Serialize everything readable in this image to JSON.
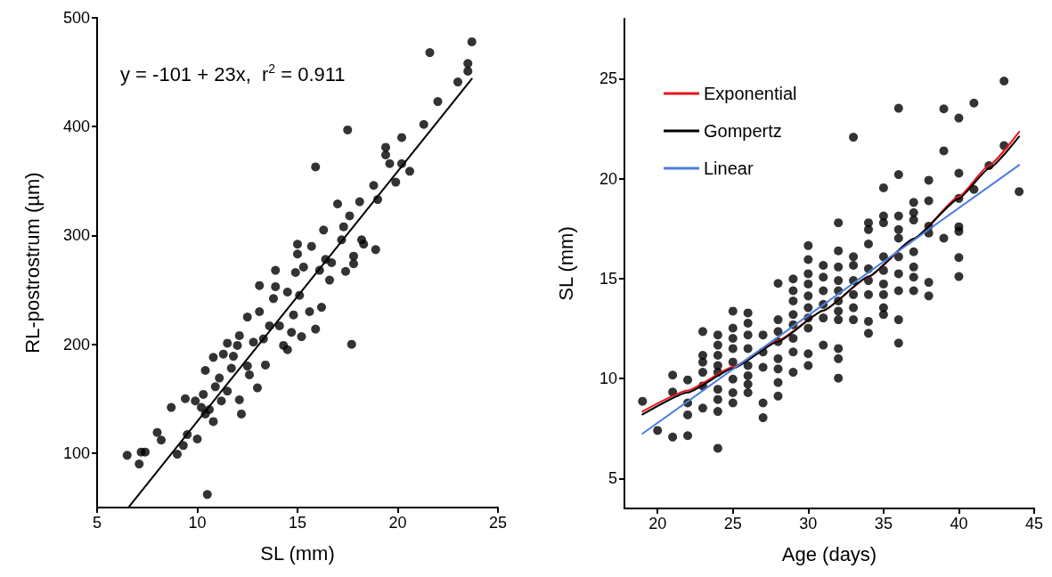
{
  "chart_data": [
    {
      "type": "scatter",
      "xlabel": "SL (mm)",
      "ylabel": "RL-postrostrum (µm)",
      "xlim": [
        5,
        25
      ],
      "xticks": [
        5,
        10,
        15,
        20,
        25
      ],
      "ylim": [
        50,
        500
      ],
      "yticks": [
        100,
        200,
        300,
        400,
        500
      ],
      "marker": "circle",
      "annotations": [
        "y = -101 + 23x,  r$^{2}$ = 0.911"
      ],
      "series": [
        {
          "color": "#000000",
          "x": [
            6.5,
            7.1,
            7.2,
            7.4,
            8.0,
            8.2,
            8.7,
            9.0,
            9.3,
            9.4,
            9.5,
            9.9,
            10.0,
            10.3,
            10.5,
            10.4,
            10.8,
            10.9,
            10.8,
            10.4,
            11.3,
            11.5,
            11.2,
            11.5,
            11.8,
            12.1,
            12.1,
            12.2,
            12.5,
            12.6,
            12.5,
            13.0,
            13.1,
            13.1,
            13.3,
            13.4,
            13.6,
            13.8,
            13.9,
            13.9,
            14.1,
            14.3,
            14.5,
            14.5,
            14.7,
            14.8,
            14.9,
            15.0,
            15.0,
            15.2,
            15.1,
            15.3,
            15.6,
            15.7,
            15.9,
            15.9,
            16.1,
            16.2,
            16.3,
            16.4,
            16.6,
            16.7,
            17.0,
            17.2,
            17.3,
            17.4,
            17.5,
            17.6,
            17.7,
            17.8,
            17.8,
            18.1,
            18.2,
            18.3,
            18.8,
            18.9,
            19.0,
            19.4,
            19.4,
            19.6,
            19.9,
            20.2,
            20.2,
            20.6,
            21.3,
            21.6,
            22.0,
            23.0,
            23.5,
            23.5,
            23.7,
            10.2,
            10.6,
            11.1,
            11.7,
            12.0,
            12.8
          ],
          "values": [
            98,
            90,
            101,
            101,
            119,
            112,
            142,
            99,
            107,
            150,
            117,
            148,
            113,
            154,
            62,
            136,
            129,
            161,
            188,
            176,
            191,
            201,
            148,
            157,
            189,
            149,
            208,
            136,
            180,
            172,
            225,
            160,
            254,
            230,
            205,
            181,
            217,
            242,
            253,
            268,
            217,
            199,
            195,
            248,
            211,
            227,
            266,
            283,
            292,
            207,
            245,
            271,
            230,
            290,
            214,
            363,
            268,
            234,
            305,
            278,
            259,
            275,
            329,
            296,
            308,
            267,
            397,
            318,
            200,
            281,
            274,
            331,
            296,
            292,
            346,
            287,
            333,
            374,
            381,
            366,
            349,
            390,
            366,
            359,
            402,
            468,
            423,
            441,
            458,
            451,
            478,
            142,
            140,
            169,
            178,
            199,
            202
          ]
        },
        {
          "type": "line",
          "marker": "none",
          "color": "#000000",
          "x": [
            6.6,
            23.7
          ],
          "values": [
            51,
            444
          ]
        }
      ]
    },
    {
      "type": "scatter",
      "xlabel": "Age (days)",
      "ylabel": "SL (mm)",
      "xlim": [
        17.8,
        45
      ],
      "xticks": [
        20,
        25,
        30,
        35,
        40,
        45
      ],
      "ylim": [
        3.5,
        28
      ],
      "yticks": [
        5,
        10,
        15,
        20,
        25
      ],
      "marker": "circle",
      "legend": "top left",
      "series": [
        {
          "color": "#000000",
          "x": [
            19,
            20,
            21,
            21,
            21,
            22,
            22,
            22,
            22,
            23,
            23,
            23,
            23,
            23,
            23,
            24,
            24,
            24,
            24,
            24,
            24,
            24,
            24,
            24,
            25,
            25,
            25,
            25,
            25,
            25,
            25,
            25,
            26,
            26,
            26,
            26,
            26,
            26,
            26,
            26,
            27,
            27,
            27,
            27,
            27,
            28,
            28,
            28,
            28,
            28,
            28,
            28,
            28,
            29,
            29,
            29,
            29,
            29,
            29,
            29,
            29,
            30,
            30,
            30,
            30,
            30,
            30,
            30,
            30,
            30,
            30,
            31,
            31,
            31,
            31,
            31,
            31,
            32,
            32,
            32,
            32,
            32,
            32,
            32,
            32,
            32,
            32,
            32,
            33,
            33,
            33,
            33,
            33,
            33,
            33,
            34,
            34,
            34,
            34,
            34,
            34,
            34,
            34,
            35,
            35,
            35,
            35,
            35,
            35,
            35,
            35,
            35,
            36,
            36,
            36,
            36,
            36,
            36,
            36,
            36,
            36,
            36,
            37,
            37,
            37,
            37,
            37,
            37,
            37,
            38,
            38,
            38,
            38,
            38,
            38,
            39,
            39,
            39,
            40,
            40,
            40,
            40,
            40,
            40,
            40,
            41,
            41,
            42,
            43,
            43,
            44
          ],
          "values": [
            8.86,
            7.4,
            10.17,
            9.32,
            7.07,
            9.93,
            8.78,
            8.18,
            7.14,
            12.35,
            11.16,
            10.82,
            10.31,
            9.63,
            8.52,
            12.18,
            11.67,
            11.16,
            10.65,
            10.31,
            9.46,
            8.95,
            8.35,
            6.51,
            13.37,
            12.52,
            12.01,
            11.5,
            10.82,
            9.97,
            9.29,
            8.78,
            13.28,
            12.77,
            12.18,
            11.5,
            10.65,
            10.14,
            9.71,
            9.29,
            12.18,
            11.33,
            10.56,
            8.78,
            8.04,
            14.76,
            12.94,
            12.35,
            11.84,
            10.99,
            10.48,
            9.8,
            9.12,
            14.98,
            14.39,
            13.88,
            13.2,
            12.69,
            12.01,
            11.33,
            10.31,
            16.65,
            15.95,
            15.24,
            14.73,
            14.13,
            13.54,
            13.03,
            12.52,
            11.24,
            10.65,
            15.66,
            15.07,
            14.39,
            13.71,
            13.03,
            11.67,
            17.79,
            16.39,
            15.58,
            14.9,
            14.39,
            13.88,
            13.37,
            12.94,
            11.5,
            10.99,
            10.02,
            22.07,
            16.09,
            15.66,
            14.9,
            14.2,
            13.54,
            12.94,
            17.79,
            17.45,
            16.73,
            15.49,
            14.9,
            14.2,
            12.86,
            12.26,
            19.54,
            18.13,
            17.79,
            16.09,
            15.41,
            14.73,
            14.2,
            13.54,
            13.2,
            23.52,
            20.2,
            18.13,
            17.45,
            17.02,
            16.09,
            15.24,
            14.39,
            12.94,
            11.77,
            18.81,
            18.3,
            17.93,
            16.34,
            15.58,
            15.07,
            14.39,
            19.92,
            18.89,
            17.62,
            17.28,
            14.81,
            14.13,
            23.49,
            21.39,
            17.02,
            23.03,
            20.27,
            19.01,
            17.59,
            17.36,
            16.05,
            15.1,
            23.78,
            19.46,
            20.65,
            24.88,
            21.65,
            19.35
          ]
        },
        {
          "type": "line",
          "marker": "none",
          "name": "Exponential",
          "color": "#e8141b",
          "x": [
            19,
            22,
            25,
            28,
            31,
            34,
            37,
            40,
            42,
            44
          ],
          "values": [
            8.35,
            9.4,
            10.58,
            11.9,
            13.4,
            15.08,
            16.97,
            19.1,
            20.66,
            22.34
          ]
        },
        {
          "type": "line",
          "marker": "none",
          "name": "Gompertz",
          "color": "#000000",
          "x": [
            19,
            22,
            25,
            28,
            31,
            34,
            37,
            40,
            42,
            44
          ],
          "values": [
            8.2,
            9.3,
            10.5,
            11.85,
            13.4,
            15.1,
            17.0,
            19.0,
            20.5,
            22.1
          ]
        },
        {
          "type": "line",
          "marker": "none",
          "name": "Linear",
          "color": "#4a7ee0",
          "x": [
            19,
            44
          ],
          "values": [
            7.24,
            20.68
          ]
        }
      ]
    }
  ]
}
